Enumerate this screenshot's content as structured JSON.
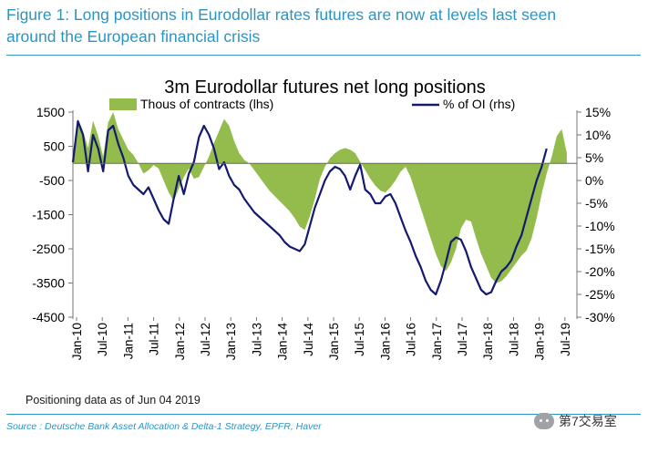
{
  "figure": {
    "title_line1": "Figure 1: Long positions in Eurodollar rates futures are now at levels last seen",
    "title_line2": "around the European financial crisis",
    "note": "Positioning data as of Jun 04 2019",
    "source": "Source : Deutsche Bank Asset Allocation & Delta-1 Strategy, EPFR, Haver",
    "watermark": "第7交易室"
  },
  "colors": {
    "area": "#93bc4c",
    "line": "#141a6e",
    "title": "#2a95c5"
  },
  "chart_data": {
    "type": "area",
    "title": "3m Eurodollar futures net long positions",
    "legend_position": "top",
    "series": [
      {
        "name": "Thous of contracts (lhs)",
        "kind": "area",
        "axis": "left",
        "points": [
          [
            0,
            100
          ],
          [
            1,
            1300
          ],
          [
            2,
            950
          ],
          [
            3,
            450
          ],
          [
            4,
            1250
          ],
          [
            5,
            800
          ],
          [
            6,
            200
          ],
          [
            7,
            1200
          ],
          [
            8,
            1500
          ],
          [
            9,
            1000
          ],
          [
            10,
            700
          ],
          [
            11,
            400
          ],
          [
            12,
            250
          ],
          [
            13,
            0
          ],
          [
            14,
            -300
          ],
          [
            15,
            -200
          ],
          [
            16,
            -50
          ],
          [
            17,
            -150
          ],
          [
            18,
            -500
          ],
          [
            19,
            -850
          ],
          [
            20,
            -1100
          ],
          [
            21,
            -750
          ],
          [
            22,
            -400
          ],
          [
            23,
            -150
          ],
          [
            24,
            -450
          ],
          [
            25,
            -400
          ],
          [
            26,
            -100
          ],
          [
            27,
            200
          ],
          [
            28,
            600
          ],
          [
            29,
            950
          ],
          [
            30,
            1300
          ],
          [
            31,
            1100
          ],
          [
            32,
            650
          ],
          [
            33,
            300
          ],
          [
            34,
            100
          ],
          [
            35,
            0
          ],
          [
            36,
            -200
          ],
          [
            37,
            -400
          ],
          [
            38,
            -600
          ],
          [
            39,
            -800
          ],
          [
            40,
            -950
          ],
          [
            41,
            -1100
          ],
          [
            42,
            -1250
          ],
          [
            43,
            -1400
          ],
          [
            44,
            -1600
          ],
          [
            45,
            -1850
          ],
          [
            46,
            -1950
          ],
          [
            47,
            -1550
          ],
          [
            48,
            -1050
          ],
          [
            49,
            -450
          ],
          [
            50,
            -100
          ],
          [
            51,
            150
          ],
          [
            52,
            300
          ],
          [
            53,
            400
          ],
          [
            54,
            450
          ],
          [
            55,
            400
          ],
          [
            56,
            300
          ],
          [
            57,
            50
          ],
          [
            58,
            -200
          ],
          [
            59,
            -450
          ],
          [
            60,
            -650
          ],
          [
            61,
            -800
          ],
          [
            62,
            -850
          ],
          [
            63,
            -700
          ],
          [
            64,
            -500
          ],
          [
            65,
            -250
          ],
          [
            66,
            -100
          ],
          [
            67,
            -400
          ],
          [
            68,
            -850
          ],
          [
            69,
            -1300
          ],
          [
            70,
            -1750
          ],
          [
            71,
            -2200
          ],
          [
            72,
            -2650
          ],
          [
            73,
            -3000
          ],
          [
            74,
            -3150
          ],
          [
            75,
            -2900
          ],
          [
            76,
            -2500
          ],
          [
            77,
            -1900
          ],
          [
            78,
            -1650
          ],
          [
            79,
            -1700
          ],
          [
            80,
            -2200
          ],
          [
            81,
            -2650
          ],
          [
            82,
            -3000
          ],
          [
            83,
            -3350
          ],
          [
            84,
            -3500
          ],
          [
            85,
            -3450
          ],
          [
            86,
            -3300
          ],
          [
            87,
            -3100
          ],
          [
            88,
            -2900
          ],
          [
            89,
            -2700
          ],
          [
            90,
            -2550
          ],
          [
            91,
            -2200
          ],
          [
            92,
            -1600
          ],
          [
            93,
            -900
          ],
          [
            94,
            -300
          ],
          [
            95,
            200
          ],
          [
            96,
            800
          ],
          [
            97,
            1000
          ],
          [
            98,
            300
          ]
        ]
      },
      {
        "name": "% of OI (rhs)",
        "kind": "line",
        "axis": "right",
        "points": [
          [
            0,
            4
          ],
          [
            1,
            13
          ],
          [
            2,
            10
          ],
          [
            3,
            2
          ],
          [
            4,
            10
          ],
          [
            5,
            7
          ],
          [
            6,
            2
          ],
          [
            7,
            11
          ],
          [
            8,
            12
          ],
          [
            9,
            8
          ],
          [
            10,
            5
          ],
          [
            11,
            1
          ],
          [
            12,
            -1
          ],
          [
            13,
            -2
          ],
          [
            14,
            -3
          ],
          [
            15,
            -1.5
          ],
          [
            16,
            -4
          ],
          [
            17,
            -6.5
          ],
          [
            18,
            -8.5
          ],
          [
            19,
            -9.5
          ],
          [
            20,
            -4
          ],
          [
            21,
            1
          ],
          [
            22,
            -3
          ],
          [
            23,
            1.5
          ],
          [
            24,
            4
          ],
          [
            25,
            9.5
          ],
          [
            26,
            12
          ],
          [
            27,
            10
          ],
          [
            28,
            7
          ],
          [
            29,
            2.5
          ],
          [
            30,
            4
          ],
          [
            31,
            1
          ],
          [
            32,
            -1
          ],
          [
            33,
            -2
          ],
          [
            34,
            -4
          ],
          [
            35,
            -5.5
          ],
          [
            36,
            -7
          ],
          [
            37,
            -8
          ],
          [
            38,
            -9
          ],
          [
            39,
            -10
          ],
          [
            40,
            -11
          ],
          [
            41,
            -12
          ],
          [
            42,
            -13.5
          ],
          [
            43,
            -14.5
          ],
          [
            44,
            -15
          ],
          [
            45,
            -15.5
          ],
          [
            46,
            -14
          ],
          [
            47,
            -10
          ],
          [
            48,
            -6
          ],
          [
            49,
            -3
          ],
          [
            50,
            0
          ],
          [
            51,
            2
          ],
          [
            52,
            3
          ],
          [
            53,
            2.5
          ],
          [
            54,
            1
          ],
          [
            55,
            -2
          ],
          [
            56,
            1
          ],
          [
            57,
            3.5
          ],
          [
            58,
            -2
          ],
          [
            59,
            -3
          ],
          [
            60,
            -5
          ],
          [
            61,
            -5
          ],
          [
            62,
            -3.5
          ],
          [
            63,
            -3
          ],
          [
            64,
            -5
          ],
          [
            65,
            -8
          ],
          [
            66,
            -11
          ],
          [
            67,
            -13.5
          ],
          [
            68,
            -16.5
          ],
          [
            69,
            -19
          ],
          [
            70,
            -22
          ],
          [
            71,
            -24
          ],
          [
            72,
            -25
          ],
          [
            73,
            -22
          ],
          [
            74,
            -18
          ],
          [
            75,
            -13.5
          ],
          [
            76,
            -12.5
          ],
          [
            77,
            -13
          ],
          [
            78,
            -15.5
          ],
          [
            79,
            -19
          ],
          [
            80,
            -21.5
          ],
          [
            81,
            -24
          ],
          [
            82,
            -25
          ],
          [
            83,
            -24.5
          ],
          [
            84,
            -22
          ],
          [
            85,
            -20
          ],
          [
            86,
            -19
          ],
          [
            87,
            -17.5
          ],
          [
            88,
            -14.5
          ],
          [
            89,
            -12
          ],
          [
            90,
            -8
          ],
          [
            91,
            -4
          ],
          [
            92,
            0
          ],
          [
            93,
            3
          ],
          [
            94,
            7
          ]
        ]
      }
    ],
    "x_index_range": [
      0,
      100
    ],
    "xlabels": [
      "Jan-10",
      "Jul-10",
      "Jan-11",
      "Jul-11",
      "Jan-12",
      "Jul-12",
      "Jan-13",
      "Jul-13",
      "Jan-14",
      "Jul-14",
      "Jan-15",
      "Jul-15",
      "Jan-16",
      "Jul-16",
      "Jan-17",
      "Jul-17",
      "Jan-18",
      "Jul-18",
      "Jan-19",
      "Jul-19"
    ],
    "ylim_left": [
      -4500,
      1500
    ],
    "yticks_left": [
      "1500",
      "500",
      "-500",
      "-1500",
      "-2500",
      "-3500",
      "-4500"
    ],
    "ylim_right": [
      -30,
      15
    ],
    "yticks_right": [
      "15%",
      "10%",
      "5%",
      "0%",
      "-5%",
      "-10%",
      "-15%",
      "-20%",
      "-25%",
      "-30%"
    ]
  }
}
